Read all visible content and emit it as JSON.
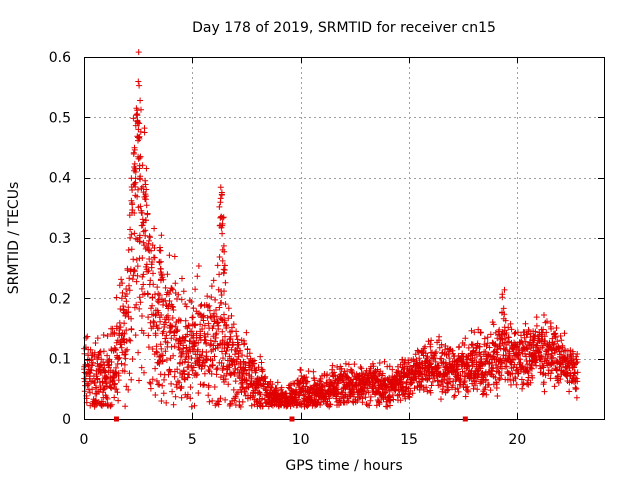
{
  "chart_data": {
    "type": "scatter",
    "title": "Day 178 of 2019, SRMTID for receiver cn15",
    "xlabel": "GPS time / hours",
    "ylabel": "SRMTID / TECUs",
    "xlim": [
      0,
      24
    ],
    "ylim": [
      0,
      0.6
    ],
    "xticks": [
      0,
      5,
      10,
      15,
      20
    ],
    "yticks": [
      0,
      0.1,
      0.2,
      0.3,
      0.4,
      0.5,
      0.6
    ],
    "xtick_labels": [
      "0",
      "5",
      "10",
      "15",
      "20"
    ],
    "ytick_labels": [
      "0",
      "0.1",
      "0.2",
      "0.3",
      "0.4",
      "0.5",
      "0.6"
    ],
    "grid": true,
    "marker": "+",
    "series": [
      {
        "name": "SRMTID",
        "color": "#e00000",
        "profile": [
          [
            0.0,
            0.08,
            0.1
          ],
          [
            0.4,
            0.07,
            0.13
          ],
          [
            0.8,
            0.065,
            0.15
          ],
          [
            1.2,
            0.075,
            0.12
          ],
          [
            1.6,
            0.11,
            0.14
          ],
          [
            2.0,
            0.18,
            0.26
          ],
          [
            2.3,
            0.28,
            0.4
          ],
          [
            2.5,
            0.33,
            0.48
          ],
          [
            2.7,
            0.3,
            0.45
          ],
          [
            3.0,
            0.23,
            0.33
          ],
          [
            3.3,
            0.16,
            0.25
          ],
          [
            3.6,
            0.14,
            0.22
          ],
          [
            4.0,
            0.14,
            0.2
          ],
          [
            4.5,
            0.12,
            0.2
          ],
          [
            5.0,
            0.11,
            0.18
          ],
          [
            5.5,
            0.13,
            0.18
          ],
          [
            6.0,
            0.13,
            0.18
          ],
          [
            6.3,
            0.15,
            0.22
          ],
          [
            6.6,
            0.11,
            0.16
          ],
          [
            7.0,
            0.09,
            0.12
          ],
          [
            7.5,
            0.08,
            0.1
          ],
          [
            8.0,
            0.06,
            0.08
          ],
          [
            8.5,
            0.045,
            0.05
          ],
          [
            9.0,
            0.03,
            0.04
          ],
          [
            9.5,
            0.035,
            0.05
          ],
          [
            10.0,
            0.045,
            0.07
          ],
          [
            10.5,
            0.04,
            0.06
          ],
          [
            11.0,
            0.045,
            0.05
          ],
          [
            11.5,
            0.05,
            0.06
          ],
          [
            12.0,
            0.055,
            0.06
          ],
          [
            12.5,
            0.055,
            0.06
          ],
          [
            13.0,
            0.06,
            0.06
          ],
          [
            13.5,
            0.055,
            0.06
          ],
          [
            14.0,
            0.05,
            0.06
          ],
          [
            14.5,
            0.06,
            0.06
          ],
          [
            15.0,
            0.07,
            0.06
          ],
          [
            15.5,
            0.08,
            0.07
          ],
          [
            16.0,
            0.09,
            0.08
          ],
          [
            16.5,
            0.08,
            0.08
          ],
          [
            17.0,
            0.08,
            0.08
          ],
          [
            17.5,
            0.08,
            0.08
          ],
          [
            18.0,
            0.09,
            0.09
          ],
          [
            18.5,
            0.085,
            0.09
          ],
          [
            19.0,
            0.1,
            0.1
          ],
          [
            19.3,
            0.12,
            0.12
          ],
          [
            19.6,
            0.11,
            0.1
          ],
          [
            20.0,
            0.1,
            0.09
          ],
          [
            20.5,
            0.11,
            0.09
          ],
          [
            21.0,
            0.12,
            0.09
          ],
          [
            21.5,
            0.11,
            0.09
          ],
          [
            22.0,
            0.1,
            0.08
          ],
          [
            22.5,
            0.09,
            0.07
          ],
          [
            22.8,
            0.08,
            0.06
          ]
        ],
        "spikes": [
          [
            2.45,
            0.52
          ],
          [
            2.5,
            0.5
          ],
          [
            2.55,
            0.48
          ],
          [
            2.6,
            0.44
          ],
          [
            2.3,
            0.45
          ],
          [
            2.35,
            0.43
          ],
          [
            2.2,
            0.39
          ],
          [
            2.7,
            0.36
          ],
          [
            2.8,
            0.33
          ],
          [
            6.35,
            0.39
          ],
          [
            6.3,
            0.36
          ],
          [
            6.4,
            0.34
          ],
          [
            6.45,
            0.29
          ],
          [
            6.5,
            0.26
          ],
          [
            19.35,
            0.22
          ],
          [
            3.5,
            0.29
          ],
          [
            3.6,
            0.25
          ]
        ]
      }
    ],
    "x_marks": [
      1.5,
      9.6,
      17.6
    ]
  }
}
